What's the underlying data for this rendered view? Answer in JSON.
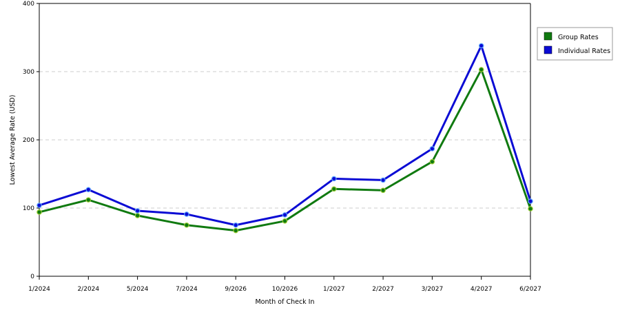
{
  "chart_data": {
    "type": "line",
    "title": "",
    "xlabel": "Month of Check In",
    "ylabel": "Lowest Average Rate (USD)",
    "categories": [
      "1/2024",
      "2/2024",
      "5/2024",
      "7/2024",
      "9/2026",
      "10/2026",
      "1/2027",
      "2/2027",
      "3/2027",
      "4/2027",
      "6/2027"
    ],
    "ylim": [
      0,
      400
    ],
    "yticks": [
      0,
      100,
      200,
      300,
      400
    ],
    "grid": "horizontal dashed",
    "legend_position": "right",
    "series": [
      {
        "name": "Group Rates",
        "color": "#107a10",
        "values": [
          94,
          112,
          89,
          75,
          67,
          81,
          128,
          126,
          168,
          303,
          99
        ]
      },
      {
        "name": "Individual Rates",
        "color": "#0b0bd4",
        "values": [
          104,
          127,
          96,
          91,
          75,
          90,
          143,
          141,
          187,
          338,
          110
        ]
      }
    ]
  }
}
